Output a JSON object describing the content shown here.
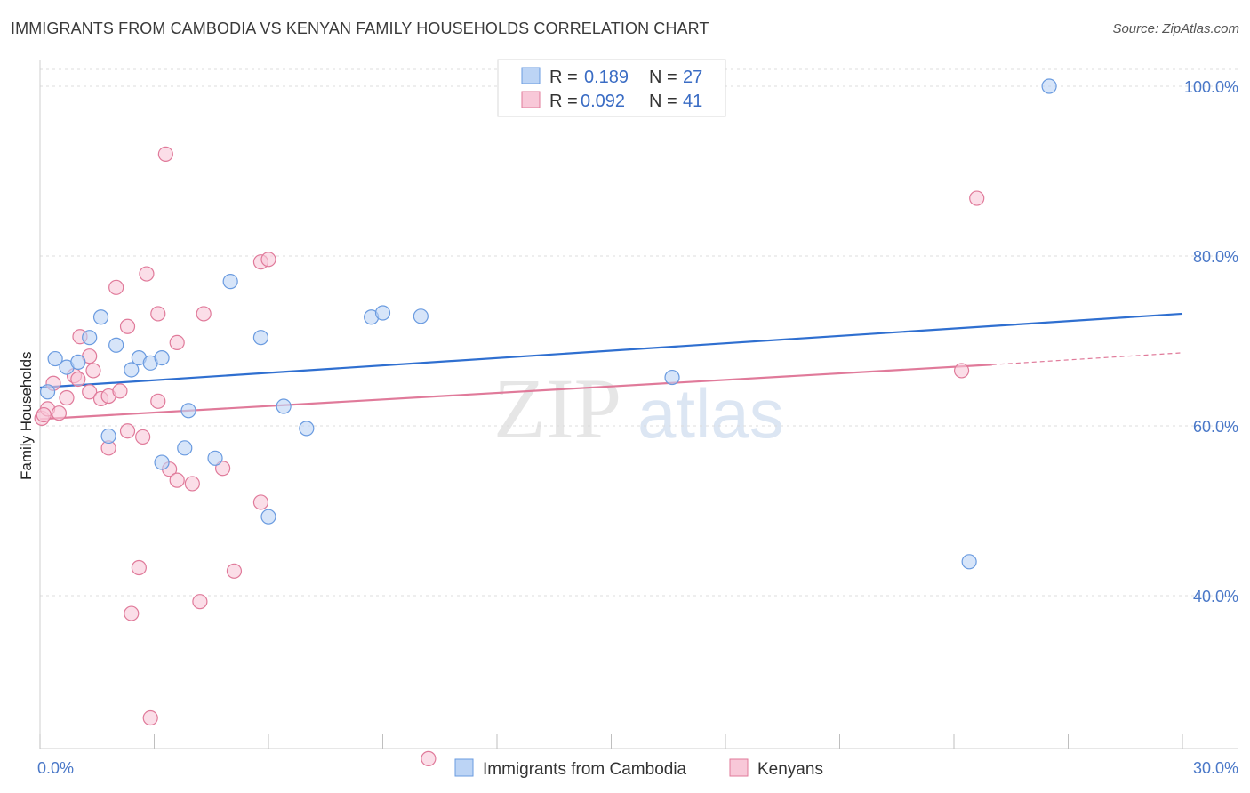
{
  "title": "IMMIGRANTS FROM CAMBODIA VS KENYAN FAMILY HOUSEHOLDS CORRELATION CHART",
  "source": "Source: ZipAtlas.com",
  "watermark": {
    "zip": "ZIP",
    "atlas": "atlas"
  },
  "colors": {
    "blue": "#6a9be0",
    "blue_fill": "#bcd4f5",
    "pink": "#e07a9a",
    "pink_fill": "#f8c8d8",
    "blue_line": "#2f6fd0",
    "pink_line": "#e07a9a"
  },
  "legend": {
    "rows": [
      {
        "r_label": "R =",
        "r_value": "0.189",
        "n_label": "N =",
        "n_value": "27"
      },
      {
        "r_label": "R =",
        "r_value": "0.092",
        "n_label": "N =",
        "n_value": "41"
      }
    ]
  },
  "bottom_legend": [
    "Immigrants from Cambodia",
    "Kenyans"
  ],
  "chart_data": {
    "type": "scatter",
    "title": "IMMIGRANTS FROM CAMBODIA VS KENYAN FAMILY HOUSEHOLDS CORRELATION CHART",
    "xlabel": "",
    "ylabel": "Family Households",
    "xlim": [
      0,
      30
    ],
    "ylim": [
      20,
      102
    ],
    "x_tick_labels": [
      "0.0%",
      "30.0%"
    ],
    "y_ticks": [
      40,
      60,
      80,
      100
    ],
    "y_tick_labels": [
      "40.0%",
      "60.0%",
      "80.0%",
      "100.0%"
    ],
    "grid": true,
    "series": [
      {
        "name": "Immigrants from Cambodia",
        "color": "#6a9be0",
        "trend": {
          "x": [
            0,
            30
          ],
          "y": [
            64.5,
            73.2
          ]
        },
        "points": [
          [
            0.2,
            64.0
          ],
          [
            0.4,
            67.9
          ],
          [
            0.7,
            66.9
          ],
          [
            1.0,
            67.5
          ],
          [
            1.3,
            70.4
          ],
          [
            1.6,
            72.8
          ],
          [
            1.8,
            58.8
          ],
          [
            2.0,
            69.5
          ],
          [
            2.4,
            66.6
          ],
          [
            2.6,
            68.0
          ],
          [
            2.9,
            67.4
          ],
          [
            3.2,
            68.0
          ],
          [
            3.2,
            55.7
          ],
          [
            3.8,
            57.4
          ],
          [
            3.9,
            61.8
          ],
          [
            4.6,
            56.2
          ],
          [
            5.0,
            77.0
          ],
          [
            5.8,
            70.4
          ],
          [
            6.0,
            49.3
          ],
          [
            6.4,
            62.3
          ],
          [
            7.0,
            59.7
          ],
          [
            8.7,
            72.8
          ],
          [
            9.0,
            73.3
          ],
          [
            10.0,
            72.9
          ],
          [
            16.6,
            65.7
          ],
          [
            24.4,
            44.0
          ],
          [
            26.5,
            100.0
          ]
        ]
      },
      {
        "name": "Kenyans",
        "color": "#e07a9a",
        "trend": {
          "x": [
            0,
            25.0
          ],
          "y": [
            60.8,
            67.2
          ]
        },
        "trend_dashed": {
          "x": [
            25.0,
            30
          ],
          "y": [
            67.2,
            68.6
          ]
        },
        "points": [
          [
            0.05,
            60.9
          ],
          [
            0.2,
            62.0
          ],
          [
            0.35,
            65.0
          ],
          [
            0.5,
            61.5
          ],
          [
            0.7,
            63.3
          ],
          [
            0.9,
            65.9
          ],
          [
            1.0,
            65.5
          ],
          [
            1.05,
            70.5
          ],
          [
            1.3,
            64.0
          ],
          [
            1.3,
            68.2
          ],
          [
            1.4,
            66.5
          ],
          [
            1.6,
            63.2
          ],
          [
            1.8,
            63.5
          ],
          [
            1.8,
            57.4
          ],
          [
            2.0,
            76.3
          ],
          [
            2.1,
            64.1
          ],
          [
            2.3,
            59.4
          ],
          [
            2.3,
            71.7
          ],
          [
            2.4,
            37.9
          ],
          [
            2.6,
            43.3
          ],
          [
            2.7,
            58.7
          ],
          [
            2.8,
            77.9
          ],
          [
            2.9,
            25.6
          ],
          [
            3.1,
            62.9
          ],
          [
            3.1,
            73.2
          ],
          [
            3.3,
            92.0
          ],
          [
            3.4,
            54.9
          ],
          [
            3.6,
            69.8
          ],
          [
            3.6,
            53.6
          ],
          [
            4.0,
            53.2
          ],
          [
            4.2,
            39.3
          ],
          [
            4.3,
            73.2
          ],
          [
            4.8,
            55.0
          ],
          [
            5.1,
            42.9
          ],
          [
            5.8,
            51.0
          ],
          [
            5.8,
            79.3
          ],
          [
            6.0,
            79.6
          ],
          [
            10.2,
            20.8
          ],
          [
            24.2,
            66.5
          ],
          [
            24.6,
            86.8
          ],
          [
            0.1,
            61.3
          ]
        ]
      }
    ]
  }
}
